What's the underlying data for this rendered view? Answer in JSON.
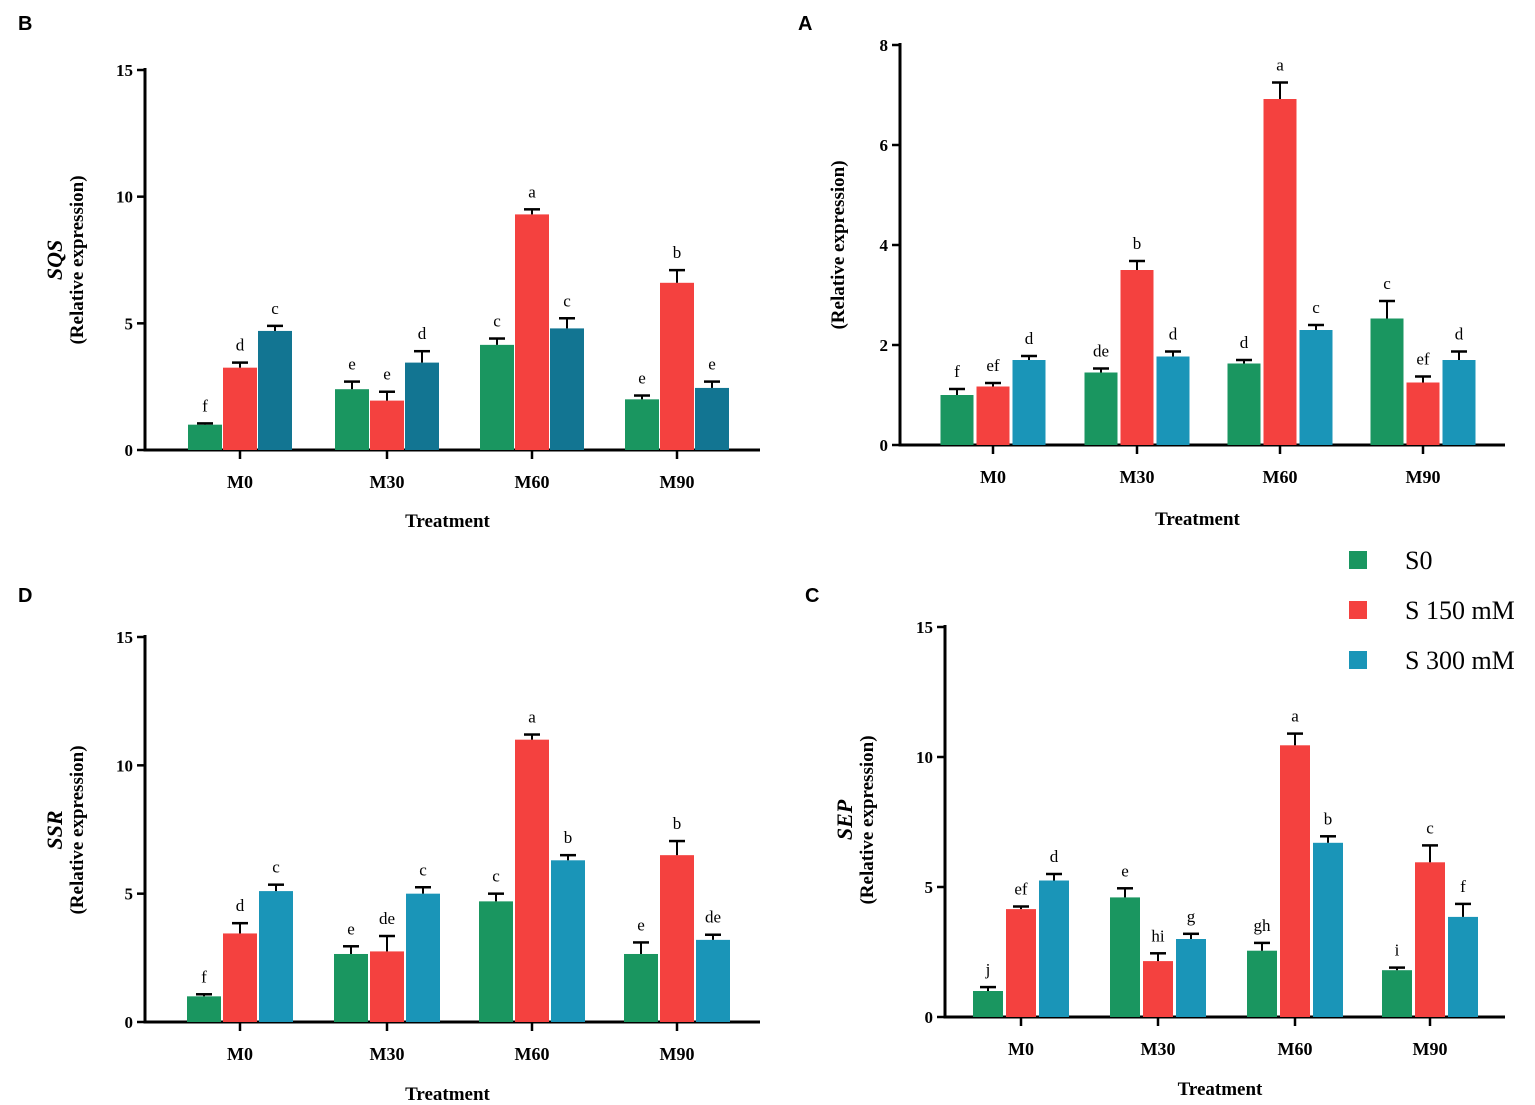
{
  "chart_data": {
    "type": "bar",
    "legend": {
      "placement": "right, between top and bottom rows",
      "entries": [
        "S0",
        "S 150 mM",
        "S 300 mM"
      ]
    },
    "colors": {
      "S0": "#1a9660",
      "S 150 mM": "#f4413f",
      "S 300 mM": "#1a95b8",
      "S 300 mM (panel B)": "#127592"
    },
    "panels": [
      {
        "letter": "B",
        "gene": "SQS",
        "ylabel": "(Relative expression)",
        "xlabel": "Treatment",
        "categories": [
          "M0",
          "M30",
          "M60",
          "M90"
        ],
        "ylim": [
          0,
          15
        ],
        "yticks": [
          "0",
          "5",
          "10",
          "15"
        ],
        "series": [
          {
            "name": "S0",
            "values": [
              1.0,
              2.4,
              4.15,
              2.0
            ],
            "errors": [
              0.05,
              0.3,
              0.25,
              0.15
            ],
            "letters": [
              "f",
              "e",
              "c",
              "e"
            ]
          },
          {
            "name": "S 150 mM",
            "values": [
              3.25,
              1.95,
              9.3,
              6.6
            ],
            "errors": [
              0.2,
              0.35,
              0.2,
              0.5
            ],
            "letters": [
              "d",
              "e",
              "a",
              "b"
            ]
          },
          {
            "name": "S 300 mM",
            "values": [
              4.7,
              3.45,
              4.8,
              2.45
            ],
            "errors": [
              0.2,
              0.45,
              0.4,
              0.25
            ],
            "letters": [
              "c",
              "d",
              "c",
              "e"
            ]
          }
        ]
      },
      {
        "letter": "A",
        "gene": "",
        "ylabel": "(Relative expression)",
        "xlabel": "Treatment",
        "categories": [
          "M0",
          "M30",
          "M60",
          "M90"
        ],
        "ylim": [
          0,
          8
        ],
        "yticks": [
          "0",
          "2",
          "4",
          "6",
          "8"
        ],
        "series": [
          {
            "name": "S0",
            "values": [
              1.0,
              1.45,
              1.63,
              2.53
            ],
            "errors": [
              0.12,
              0.08,
              0.07,
              0.35
            ],
            "letters": [
              "f",
              "de",
              "d",
              "c"
            ]
          },
          {
            "name": "S 150 mM",
            "values": [
              1.17,
              3.5,
              6.92,
              1.25
            ],
            "errors": [
              0.07,
              0.18,
              0.33,
              0.12
            ],
            "letters": [
              "ef",
              "b",
              "a",
              "ef"
            ]
          },
          {
            "name": "S 300 mM",
            "values": [
              1.7,
              1.77,
              2.3,
              1.7
            ],
            "errors": [
              0.08,
              0.1,
              0.1,
              0.17
            ],
            "letters": [
              "d",
              "d",
              "c",
              "d"
            ]
          }
        ]
      },
      {
        "letter": "D",
        "gene": "SSR",
        "ylabel": "(Relative expression)",
        "xlabel": "Treatment",
        "categories": [
          "M0",
          "M30",
          "M60",
          "M90"
        ],
        "ylim": [
          0,
          15
        ],
        "yticks": [
          "0",
          "5",
          "10",
          "15"
        ],
        "series": [
          {
            "name": "S0",
            "values": [
              1.0,
              2.65,
              4.7,
              2.65
            ],
            "errors": [
              0.08,
              0.3,
              0.3,
              0.45
            ],
            "letters": [
              "f",
              "e",
              "c",
              "e"
            ]
          },
          {
            "name": "S 150 mM",
            "values": [
              3.45,
              2.75,
              11.0,
              6.5
            ],
            "errors": [
              0.4,
              0.6,
              0.2,
              0.55
            ],
            "letters": [
              "d",
              "de",
              "a",
              "b"
            ]
          },
          {
            "name": "S 300 mM",
            "values": [
              5.1,
              5.0,
              6.3,
              3.2
            ],
            "errors": [
              0.25,
              0.25,
              0.2,
              0.2
            ],
            "letters": [
              "c",
              "c",
              "b",
              "de"
            ]
          }
        ]
      },
      {
        "letter": "C",
        "gene": "SEP",
        "ylabel": "(Relative expression)",
        "xlabel": "Treatment",
        "categories": [
          "M0",
          "M30",
          "M60",
          "M90"
        ],
        "ylim": [
          0,
          15
        ],
        "yticks": [
          "0",
          "5",
          "10",
          "15"
        ],
        "series": [
          {
            "name": "S0",
            "values": [
              1.0,
              4.6,
              2.55,
              1.8
            ],
            "errors": [
              0.15,
              0.35,
              0.3,
              0.1
            ],
            "letters": [
              "j",
              "e",
              "gh",
              "i"
            ]
          },
          {
            "name": "S 150 mM",
            "values": [
              4.15,
              2.15,
              10.45,
              5.95
            ],
            "errors": [
              0.1,
              0.3,
              0.45,
              0.65
            ],
            "letters": [
              "ef",
              "hi",
              "a",
              "c"
            ]
          },
          {
            "name": "S 300 mM",
            "values": [
              5.25,
              3.0,
              6.7,
              3.85
            ],
            "errors": [
              0.25,
              0.2,
              0.25,
              0.5
            ],
            "letters": [
              "d",
              "g",
              "b",
              "f"
            ]
          }
        ]
      }
    ]
  }
}
